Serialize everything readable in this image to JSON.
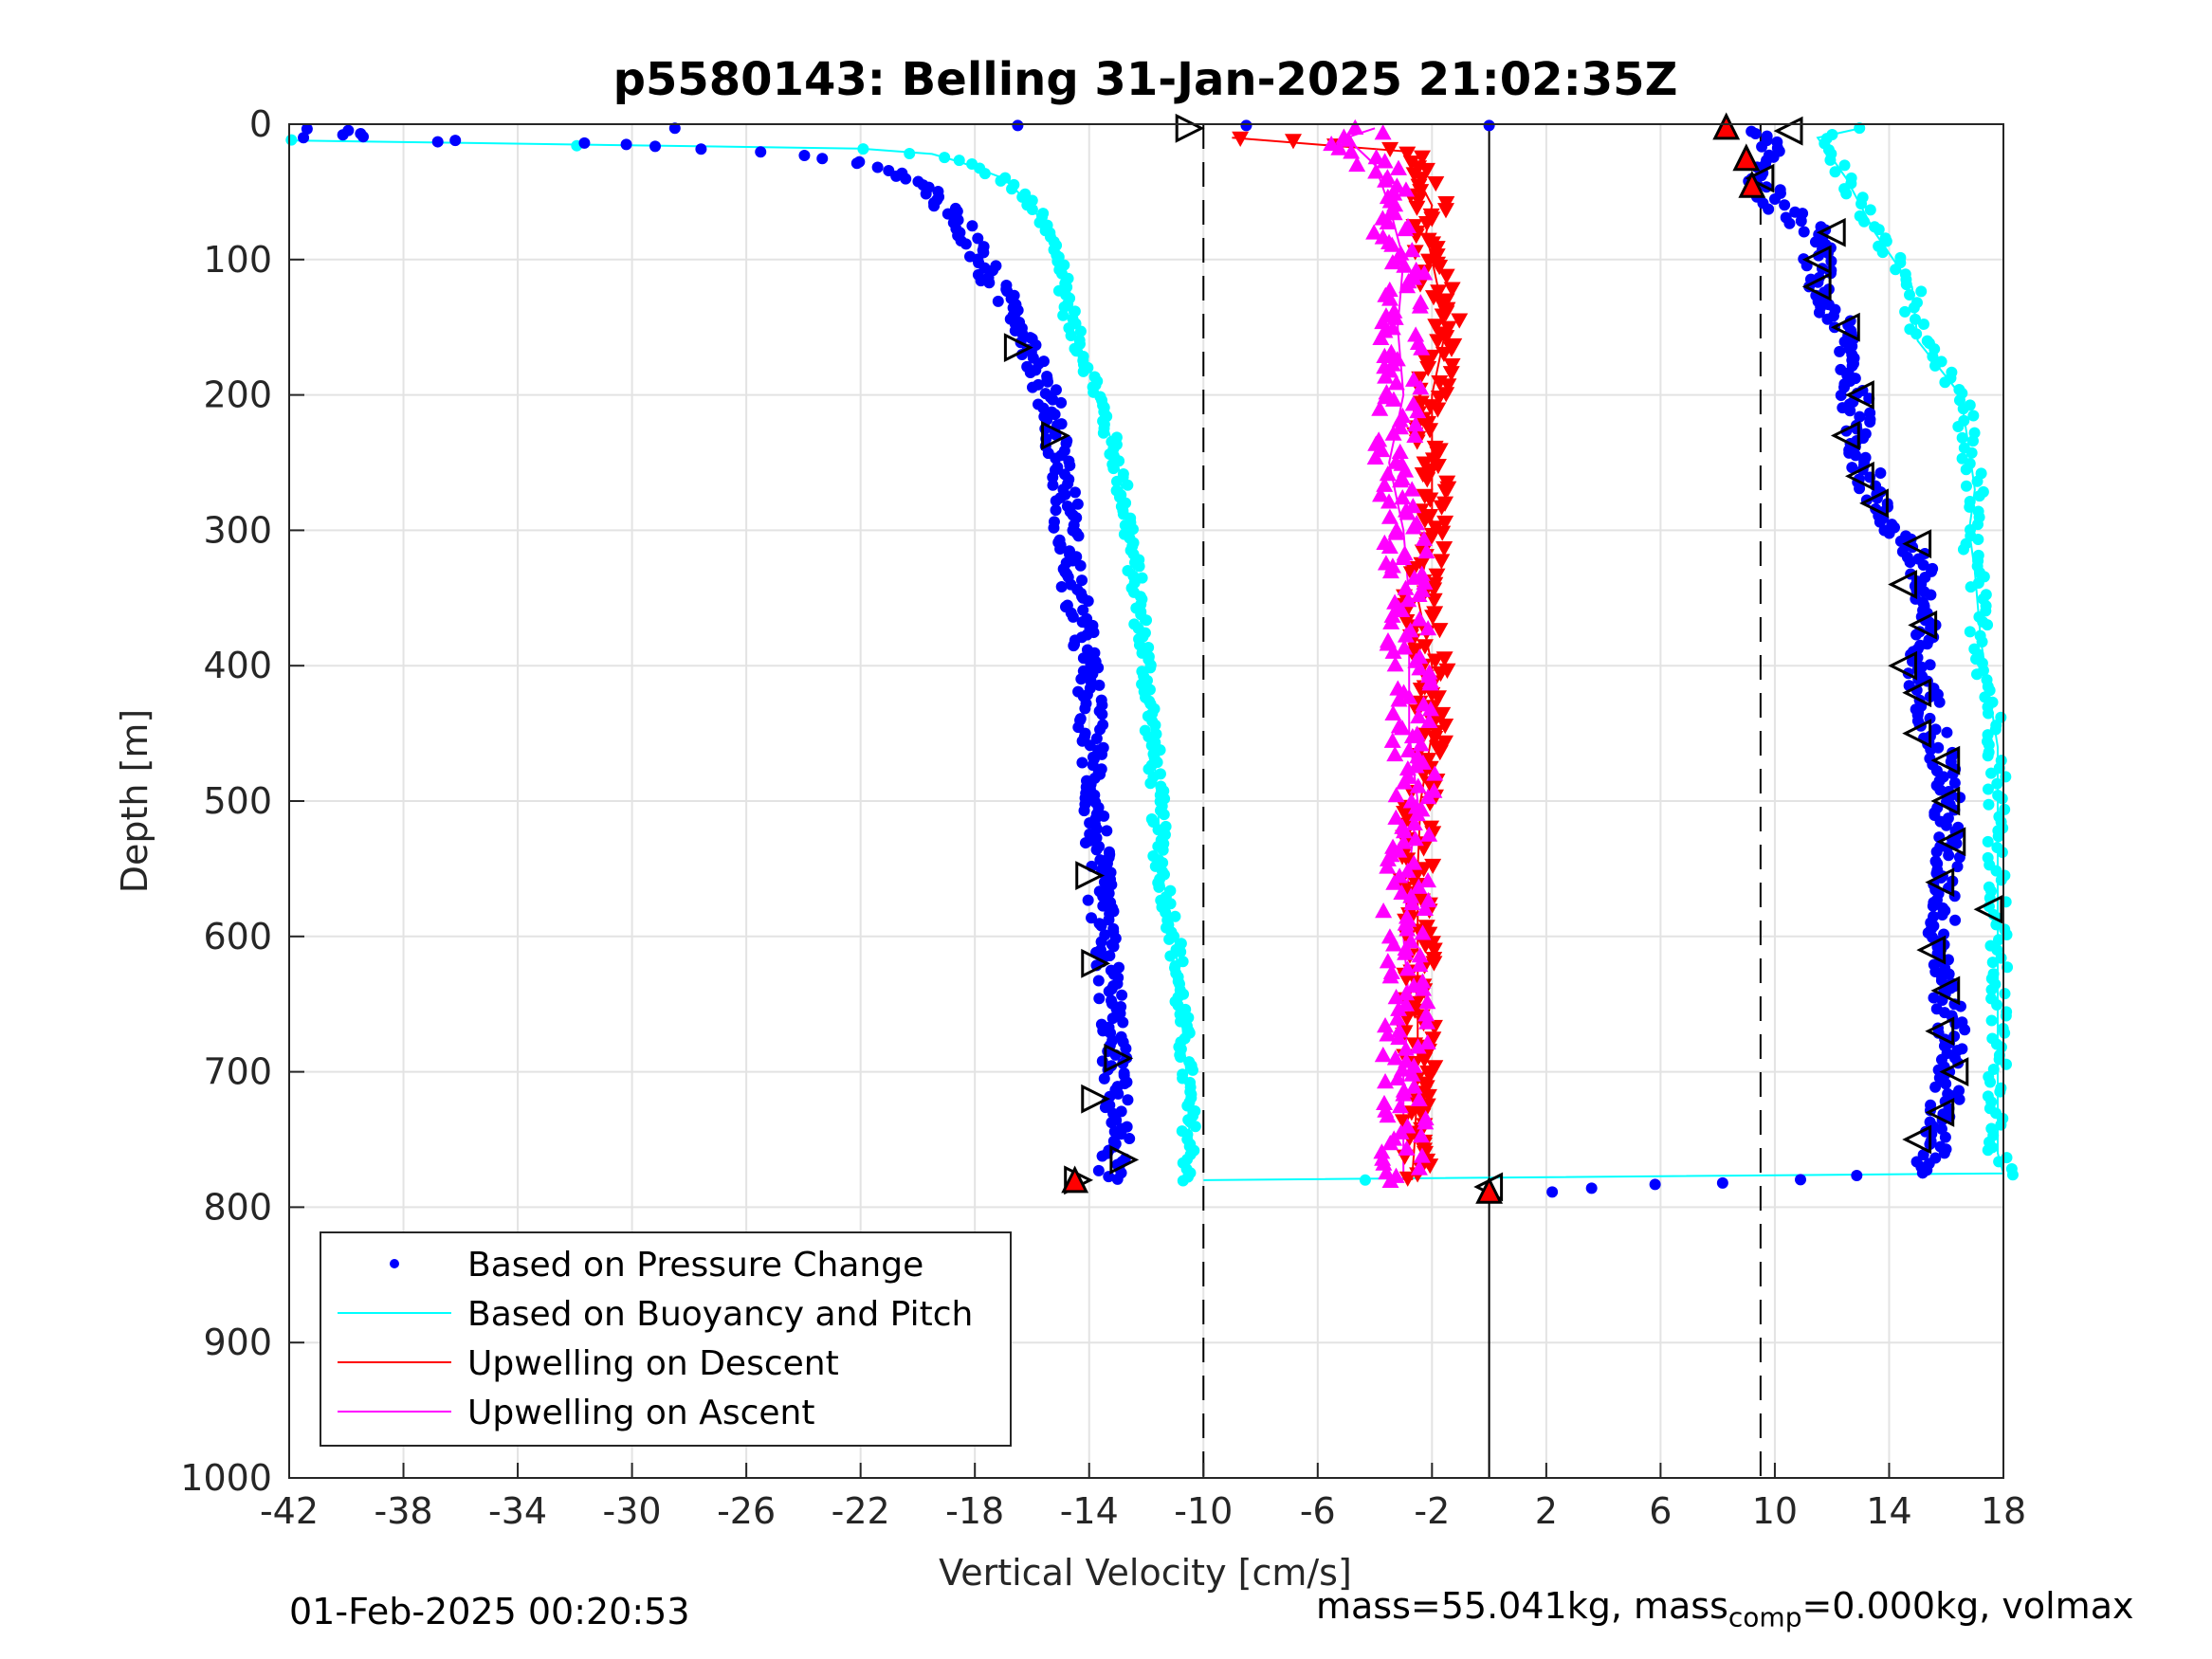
{
  "chart_data": {
    "type": "scatter",
    "title": "p5580143: Belling 31-Jan-2025 21:02:35Z",
    "xlabel": "Vertical Velocity [cm/s]",
    "ylabel": "Depth [m]",
    "xlim": [
      -42,
      18
    ],
    "ylim": [
      0,
      1000
    ],
    "y_reversed": true,
    "grid": true,
    "x_ticks": [
      -42,
      -38,
      -34,
      -30,
      -26,
      -22,
      -18,
      -14,
      -10,
      -6,
      -2,
      2,
      6,
      10,
      14,
      18
    ],
    "y_ticks": [
      0,
      100,
      200,
      300,
      400,
      500,
      600,
      700,
      800,
      900,
      1000
    ],
    "reference_lines": {
      "dashed_x": [
        -10,
        9.5
      ],
      "solid_x": [
        0
      ]
    },
    "legend": {
      "placement": "bottom-left",
      "entries": [
        {
          "label": "Based on Pressure Change",
          "color": "#0000ff",
          "marker": "dot"
        },
        {
          "label": "Based on Buoyancy and Pitch",
          "color": "#00ffff",
          "marker": "line"
        },
        {
          "label": "Upwelling on Descent",
          "color": "#ff0000",
          "marker": "line"
        },
        {
          "label": "Upwelling on Ascent",
          "color": "#ff00ff",
          "marker": "line"
        }
      ]
    },
    "series": [
      {
        "name": "Based on Pressure Change",
        "role": "pressure_descent",
        "color": "#0000ff",
        "depth": [
          3,
          10,
          15,
          20,
          25,
          30,
          40,
          50,
          60,
          80,
          100,
          120,
          140,
          160,
          180,
          200,
          220,
          250,
          280,
          300,
          340,
          380,
          420,
          460,
          500,
          550,
          600,
          650,
          700,
          750,
          780
        ],
        "velocity": [
          -41,
          -39,
          -30,
          -26,
          -23,
          -21.5,
          -20.5,
          -19.5,
          -19,
          -18.3,
          -17.8,
          -17.3,
          -16.5,
          -16,
          -15.8,
          -15.5,
          -15.2,
          -15,
          -14.8,
          -14.8,
          -14.6,
          -14.2,
          -14,
          -13.9,
          -13.8,
          -13.7,
          -13.5,
          -13.2,
          -13.1,
          -13,
          -13.3
        ]
      },
      {
        "name": "Based on Buoyancy and Pitch",
        "role": "model_descent",
        "color": "#00ffff",
        "depth": [
          12,
          18,
          22,
          28,
          40,
          60,
          100,
          150,
          180,
          200,
          250,
          300,
          350,
          400,
          450,
          500,
          550,
          600,
          650,
          700,
          740,
          780
        ],
        "velocity": [
          -42,
          -22,
          -19.5,
          -18.5,
          -17,
          -16,
          -15,
          -14.6,
          -14,
          -13.7,
          -13,
          -12.6,
          -12.3,
          -12,
          -11.8,
          -11.6,
          -11.5,
          -11,
          -10.8,
          -10.6,
          -10.5,
          -10.5
        ]
      },
      {
        "name": "Based on Pressure Change",
        "role": "pressure_ascent",
        "color": "#0000ff",
        "depth": [
          790,
          785,
          780,
          775,
          760,
          720,
          680,
          640,
          600,
          560,
          520,
          480,
          440,
          400,
          360,
          320,
          280,
          240,
          200,
          160,
          120,
          80,
          60,
          40,
          20,
          5
        ],
        "velocity": [
          0,
          5,
          10,
          15,
          15.5,
          16,
          16.2,
          16,
          15.8,
          16,
          16,
          16,
          15.5,
          15,
          15.2,
          15,
          13.5,
          13,
          12.8,
          12.5,
          11.5,
          11.5,
          10,
          9.5,
          10,
          9
        ]
      },
      {
        "name": "Based on Buoyancy and Pitch",
        "role": "model_ascent",
        "color": "#00ffff",
        "depth": [
          780,
          775,
          760,
          700,
          600,
          520,
          460,
          420,
          380,
          330,
          300,
          270,
          240,
          200,
          160,
          120,
          80,
          40,
          10,
          3
        ],
        "velocity": [
          -10,
          18,
          17.8,
          17.8,
          17.8,
          17.8,
          17.8,
          17.5,
          17.2,
          17,
          16.8,
          17,
          16.8,
          16.5,
          15,
          14.8,
          13.5,
          12.5,
          11.5,
          13
        ]
      },
      {
        "name": "Upwelling on Descent",
        "role": "upwelling_descent",
        "color": "#ff0000",
        "depth": [
          10,
          20,
          40,
          60,
          80,
          100,
          150,
          200,
          250,
          300,
          350,
          400,
          450,
          500,
          550,
          600,
          650,
          700,
          750,
          780
        ],
        "velocity": [
          -9,
          -3,
          -2.5,
          -2,
          -2.2,
          -2,
          -1.5,
          -2,
          -2,
          -2,
          -2.5,
          -2,
          -2,
          -2.4,
          -2.5,
          -2.5,
          -2.5,
          -2.5,
          -2.6,
          -2.7
        ]
      },
      {
        "name": "Upwelling on Ascent",
        "role": "upwelling_ascent",
        "color": "#ff00ff",
        "depth": [
          780,
          750,
          700,
          650,
          600,
          550,
          500,
          450,
          400,
          350,
          300,
          250,
          200,
          150,
          100,
          60,
          30,
          10,
          3
        ],
        "velocity": [
          -3,
          -3,
          -3,
          -2.8,
          -3,
          -2.8,
          -2.5,
          -2.8,
          -2.8,
          -2.8,
          -3,
          -3.5,
          -3,
          -3.2,
          -3,
          -3.5,
          -4,
          -5,
          -4
        ]
      }
    ],
    "descent_markers": {
      "depth": [
        3,
        165,
        230,
        555,
        620,
        690,
        720,
        765,
        780
      ],
      "velocity": [
        -10.5,
        -16.5,
        -15.2,
        -14,
        -13.8,
        -13,
        -13.8,
        -12.8,
        -14.4
      ],
      "marker": "triangle-right"
    },
    "ascent_markers": {
      "depth": [
        5,
        40,
        80,
        100,
        120,
        150,
        200,
        230,
        260,
        280,
        310,
        340,
        370,
        400,
        420,
        450,
        470,
        500,
        530,
        560,
        580,
        610,
        640,
        670,
        700,
        730,
        750,
        785
      ],
      "velocity": [
        10.5,
        9.5,
        12,
        11.5,
        11.5,
        12.5,
        13,
        12.5,
        13,
        13.5,
        15,
        14.5,
        15.2,
        14.5,
        15,
        15,
        16,
        16,
        16.2,
        15.8,
        17.5,
        15.5,
        16,
        15.8,
        16.3,
        15.8,
        15,
        0
      ],
      "marker": "triangle-left"
    },
    "red_triangles": {
      "depth": [
        2,
        25,
        45,
        780,
        788
      ],
      "velocity": [
        8.3,
        9,
        9.2,
        -14.5,
        0
      ]
    },
    "timestamp": "01-Feb-2025 00:20:53",
    "footer_mass_text": "mass=55.041kg, mass",
    "footer_sub_text": "comp",
    "footer_rest_text": "=0.000kg, volmax"
  }
}
